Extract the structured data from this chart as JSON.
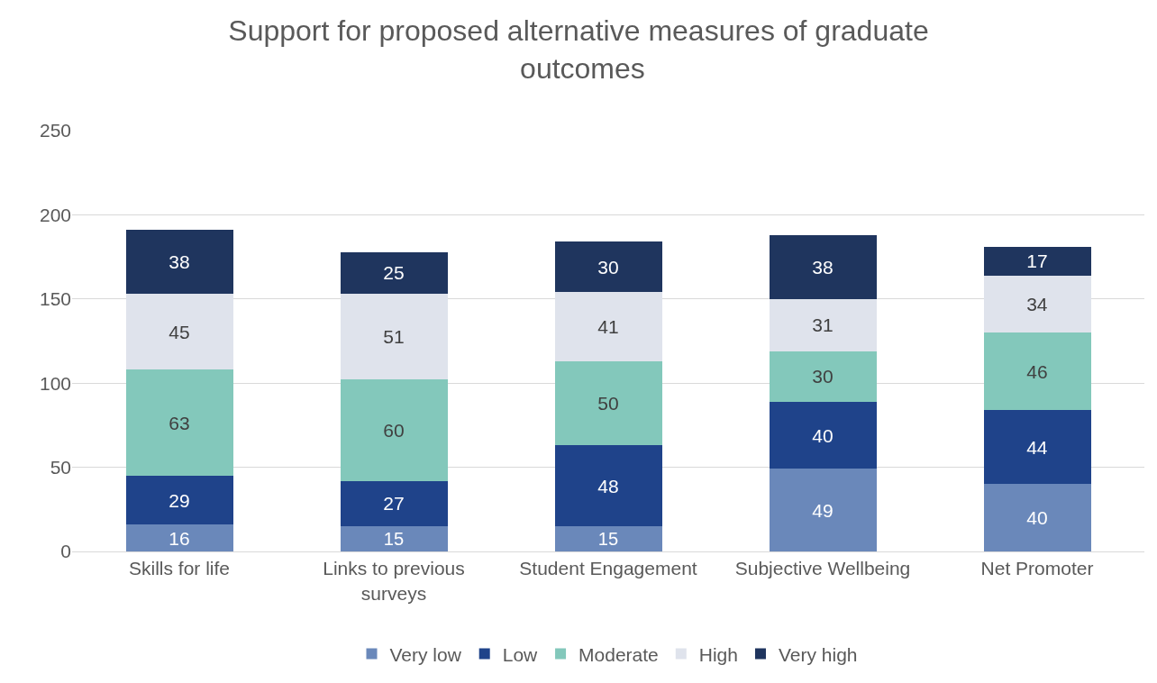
{
  "chart_data": {
    "type": "bar",
    "title": "Support for proposed alternative measures of graduate outcomes",
    "categories": [
      "Skills for life",
      "Links to previous surveys",
      "Student Engagement",
      "Subjective Wellbeing",
      "Net Promoter"
    ],
    "stacked": true,
    "series": [
      {
        "name": "Very low",
        "color": "#6a88ba",
        "values": [
          16,
          15,
          15,
          49,
          40
        ]
      },
      {
        "name": "Low",
        "color": "#1f438a",
        "values": [
          29,
          27,
          48,
          40,
          44
        ]
      },
      {
        "name": "Moderate",
        "color": "#83c8bb",
        "values": [
          63,
          60,
          50,
          30,
          46
        ]
      },
      {
        "name": "High",
        "color": "#dfe3ec",
        "values": [
          45,
          51,
          41,
          31,
          34
        ]
      },
      {
        "name": "Very high",
        "color": "#1f355e",
        "values": [
          38,
          25,
          30,
          38,
          17
        ]
      }
    ],
    "ylim": [
      0,
      250
    ],
    "yticks": [
      0,
      50,
      100,
      150,
      200,
      250
    ],
    "grid": "y",
    "legend": "bottom",
    "data_labels": true
  }
}
